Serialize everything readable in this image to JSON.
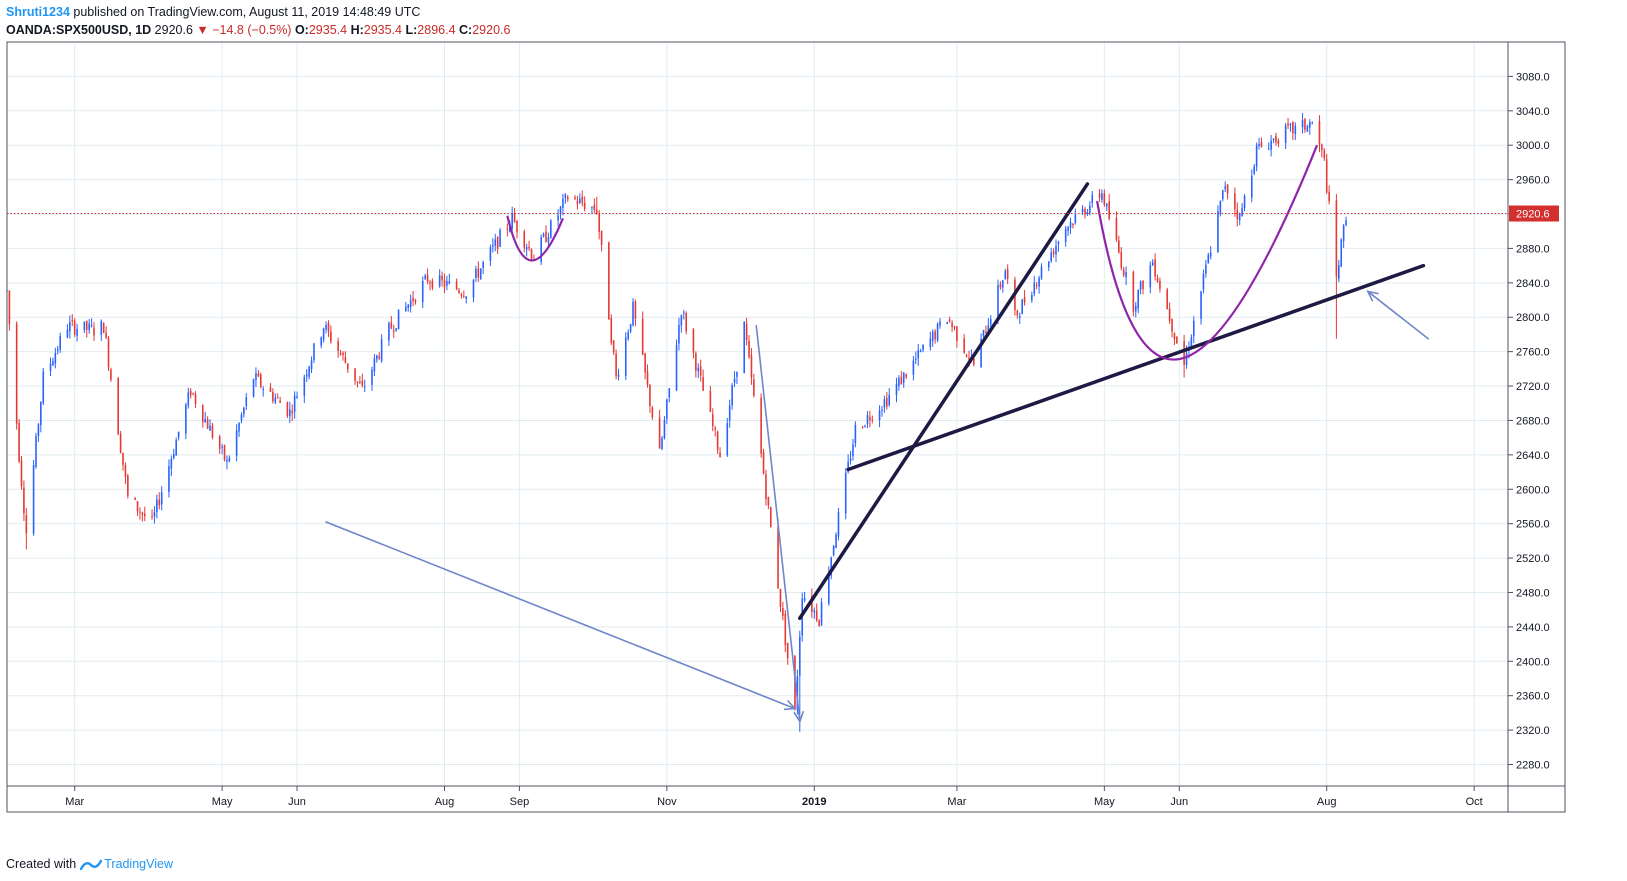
{
  "header": {
    "author": "Shruti1234",
    "published_text": "published on TradingView.com, August 11, 2019 14:48:49 UTC",
    "symbol": "OANDA:SPX500USD, 1D",
    "last": "2920.6",
    "change": "−14.8 (−0.5%)",
    "o_label": "O:",
    "o_value": "2935.4",
    "h_label": "H:",
    "h_value": "2935.4",
    "l_label": "L:",
    "l_value": "2896.4",
    "c_label": "C:",
    "c_value": "2920.6"
  },
  "footer": {
    "created_with": "Created with",
    "brand": "TradingView"
  },
  "colors": {
    "up": "#2962ff",
    "down": "#e53935",
    "price_line": "#d32f2f",
    "trend": "#1f1a44",
    "arrow": "#6f86c8",
    "curve": "#8e24aa",
    "grid": "#e1ecf2"
  },
  "chart_data": {
    "type": "candlestick",
    "instrument": "OANDA:SPX500USD",
    "interval": "1D",
    "y_ticks": [
      2280,
      2320,
      2360,
      2400,
      2440,
      2480,
      2520,
      2560,
      2600,
      2640,
      2680,
      2720,
      2760,
      2800,
      2840,
      2880,
      2920,
      2960,
      3000,
      3040,
      3080
    ],
    "y_tick_labels": [
      "2280.0",
      "2320.0",
      "2360.0",
      "2400.0",
      "2440.0",
      "2480.0",
      "2520.0",
      "2560.0",
      "2600.0",
      "2640.0",
      "2680.0",
      "2720.0",
      "2760.0",
      "2800.0",
      "2840.0",
      "2880.0",
      "2920.0",
      "2960.0",
      "3000.0",
      "3040.0",
      "3080.0"
    ],
    "ylim": [
      2255,
      3120
    ],
    "x_tick_labels": [
      "Mar",
      "May",
      "Jun",
      "Aug",
      "Sep",
      "Nov",
      "2019",
      "Mar",
      "May",
      "Jun",
      "Aug",
      "Oct"
    ],
    "x_tick_dates": [
      "2018-03-01",
      "2018-05-01",
      "2018-06-01",
      "2018-08-01",
      "2018-09-01",
      "2018-11-01",
      "2019-01-01",
      "2019-03-01",
      "2019-05-01",
      "2019-06-01",
      "2019-08-01",
      "2019-10-01"
    ],
    "xlim": [
      "2018-02-01",
      "2019-10-15"
    ],
    "current_price": 2920.6,
    "current_price_label": "2920.6",
    "anchors": [
      [
        "2018-02-01",
        2830
      ],
      [
        "2018-02-06",
        2640
      ],
      [
        "2018-02-09",
        2550
      ],
      [
        "2018-02-16",
        2730
      ],
      [
        "2018-02-26",
        2790
      ],
      [
        "2018-03-09",
        2785
      ],
      [
        "2018-03-13",
        2790
      ],
      [
        "2018-03-23",
        2590
      ],
      [
        "2018-04-02",
        2560
      ],
      [
        "2018-04-18",
        2715
      ],
      [
        "2018-05-03",
        2630
      ],
      [
        "2018-05-14",
        2730
      ],
      [
        "2018-05-29",
        2690
      ],
      [
        "2018-06-12",
        2790
      ],
      [
        "2018-06-28",
        2715
      ],
      [
        "2018-07-09",
        2785
      ],
      [
        "2018-07-25",
        2845
      ],
      [
        "2018-08-10",
        2830
      ],
      [
        "2018-08-29",
        2915
      ],
      [
        "2018-09-07",
        2870
      ],
      [
        "2018-09-21",
        2940
      ],
      [
        "2018-10-03",
        2925
      ],
      [
        "2018-10-11",
        2730
      ],
      [
        "2018-10-18",
        2810
      ],
      [
        "2018-10-29",
        2640
      ],
      [
        "2018-11-07",
        2810
      ],
      [
        "2018-11-23",
        2640
      ],
      [
        "2018-12-03",
        2790
      ],
      [
        "2018-12-10",
        2640
      ],
      [
        "2018-12-24",
        2340
      ],
      [
        "2018-12-27",
        2480
      ],
      [
        "2019-01-03",
        2450
      ],
      [
        "2019-01-18",
        2670
      ],
      [
        "2019-01-31",
        2705
      ],
      [
        "2019-02-25",
        2800
      ],
      [
        "2019-03-08",
        2745
      ],
      [
        "2019-03-21",
        2855
      ],
      [
        "2019-03-25",
        2800
      ],
      [
        "2019-04-15",
        2905
      ],
      [
        "2019-04-30",
        2945
      ],
      [
        "2019-05-13",
        2815
      ],
      [
        "2019-05-21",
        2865
      ],
      [
        "2019-06-03",
        2745
      ],
      [
        "2019-06-20",
        2955
      ],
      [
        "2019-06-26",
        2915
      ],
      [
        "2019-07-03",
        2995
      ],
      [
        "2019-07-15",
        3015
      ],
      [
        "2019-07-26",
        3025
      ],
      [
        "2019-07-31",
        2980
      ],
      [
        "2019-08-05",
        2845
      ],
      [
        "2019-08-09",
        2920
      ]
    ],
    "wick_extremes": [
      [
        "2018-02-09",
        2530,
        "low"
      ],
      [
        "2018-12-26",
        2318,
        "low"
      ],
      [
        "2019-01-03",
        2440,
        "low"
      ],
      [
        "2019-06-03",
        2730,
        "low"
      ],
      [
        "2019-08-05",
        2775,
        "low"
      ],
      [
        "2019-07-26",
        3028,
        "high"
      ],
      [
        "2018-09-21",
        2942,
        "high"
      ],
      [
        "2018-10-03",
        2940,
        "high"
      ]
    ],
    "drawings": {
      "trendline_steep": [
        [
          "2018-12-26",
          2450
        ],
        [
          "2019-04-24",
          2955
        ]
      ],
      "trendline_support": [
        [
          "2019-01-15",
          2623
        ],
        [
          "2019-09-10",
          2860
        ]
      ],
      "arrow_long": [
        [
          "2018-06-13",
          2562
        ],
        [
          "2018-12-24",
          2345
        ]
      ],
      "arrow_short": [
        [
          "2018-12-08",
          2790
        ],
        [
          "2018-12-26",
          2330
        ]
      ],
      "arrow_right": [
        [
          "2019-09-12",
          2775
        ],
        [
          "2019-08-18",
          2830
        ]
      ],
      "curve_small": [
        [
          "2018-08-27",
          2918
        ],
        [
          "2018-09-06",
          2866
        ],
        [
          "2018-09-19",
          2915
        ]
      ],
      "curve_big": [
        [
          "2019-04-28",
          2935
        ],
        [
          "2019-06-02",
          2752
        ],
        [
          "2019-07-28",
          3000
        ]
      ]
    }
  }
}
